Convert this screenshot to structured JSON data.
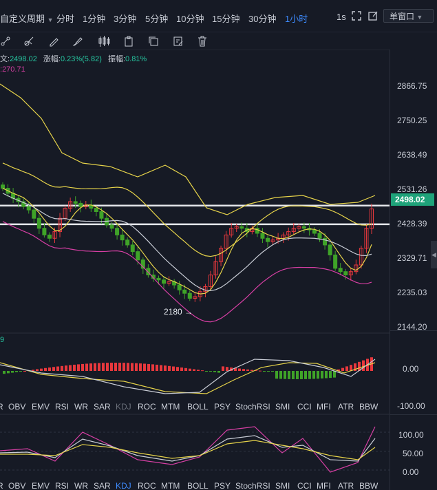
{
  "toolbar": {
    "custom_period": "自定义周期",
    "timeframes": [
      "分时",
      "1分钟",
      "3分钟",
      "5分钟",
      "10分钟",
      "15分钟",
      "30分钟",
      "1小时"
    ],
    "active_timeframe": "1小时",
    "interval_1s": "1s",
    "window_mode": "单窗口"
  },
  "info": {
    "price": "2498.02",
    "change_label": "涨幅:",
    "change_value": "0.23%(5.82)",
    "amplitude_label": "振幅:",
    "amplitude_value": "0.81%",
    "secondary_value": "270.71"
  },
  "price_axis": {
    "ticks": [
      "2866.75",
      "2750.25",
      "2638.49",
      "2531.26",
      "2428.39",
      "2329.71",
      "2235.03",
      "2144.20"
    ],
    "current_price": "2498.02",
    "low_annotation": "2180"
  },
  "macd_axis": {
    "ticks": [
      "0.00",
      "-100.00"
    ],
    "partial_label": "9"
  },
  "kdj_axis": {
    "ticks": [
      "100.00",
      "50.00",
      "0.00"
    ]
  },
  "indicator_tabs": [
    "R",
    "OBV",
    "EMV",
    "RSI",
    "WR",
    "SAR",
    "KDJ",
    "ROC",
    "MTM",
    "BOLL",
    "PSY",
    "StochRSI",
    "SMI",
    "CCI",
    "MFI",
    "ATR",
    "BBW"
  ],
  "indicator_tabs_bottom": [
    "R",
    "OBV",
    "EMV",
    "RSI",
    "WR",
    "SAR",
    "KDJ",
    "ROC",
    "MTM",
    "BOLL",
    "PSY",
    "StochRSI",
    "SMI",
    "CCI",
    "MFI",
    "ATR",
    "BBW"
  ],
  "active_indicator": "KDJ",
  "colors": {
    "up": "#e8383d",
    "down": "#3fa328",
    "accent": "#3d8bff",
    "ma_yellow": "#e6d34a",
    "boll": "#d63fa4",
    "ma_white": "#c9cdd6"
  }
}
